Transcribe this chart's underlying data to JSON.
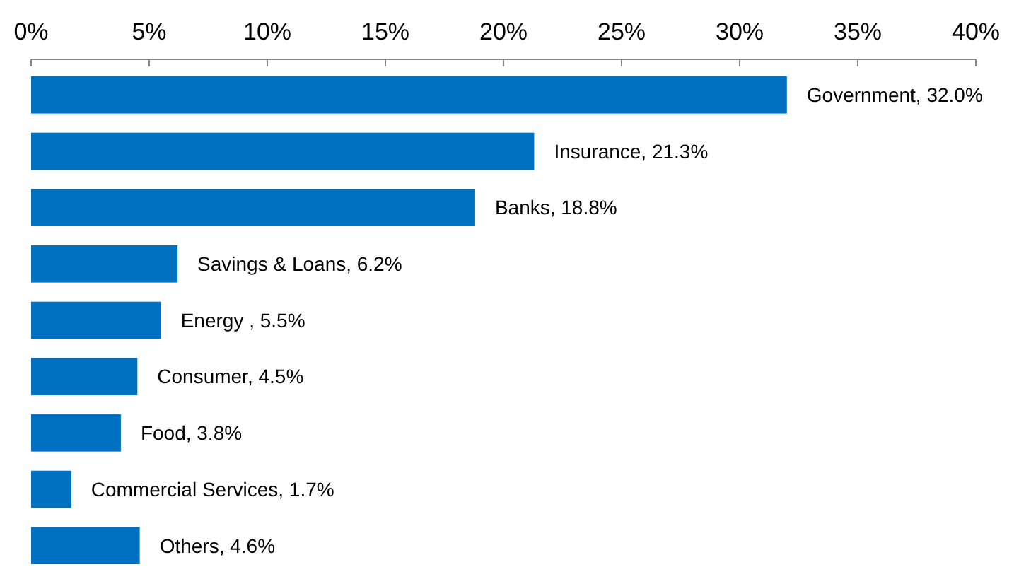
{
  "chart_data": {
    "type": "bar",
    "orientation": "horizontal",
    "categories": [
      null,
      null,
      null,
      null,
      null,
      null,
      null,
      null,
      null
    ],
    "values": [
      32.0,
      21.3,
      18.8,
      6.2,
      5.5,
      4.5,
      3.8,
      1.7,
      4.6
    ],
    "value_labels": [
      "Government, 32.0%",
      "Insurance, 21.3%",
      "Banks, 18.8%",
      "Savings & Loans, 6.2%",
      "Energy , 5.5%",
      "Consumer, 4.5%",
      "Food, 3.8%",
      "Commercial Services, 1.7%",
      "Others, 4.6%"
    ],
    "color": "#0070c0",
    "xlim": [
      0,
      40
    ],
    "xticks": [
      {
        "value": 0,
        "label": "0%"
      },
      {
        "value": 5,
        "label": "5%"
      },
      {
        "value": 10,
        "label": "10%"
      },
      {
        "value": 15,
        "label": "15%"
      },
      {
        "value": 20,
        "label": "20%"
      },
      {
        "value": 25,
        "label": "25%"
      },
      {
        "value": 30,
        "label": "30%"
      },
      {
        "value": 35,
        "label": "35%"
      },
      {
        "value": 40,
        "label": "40%"
      }
    ],
    "tick_labels": "x"
  }
}
